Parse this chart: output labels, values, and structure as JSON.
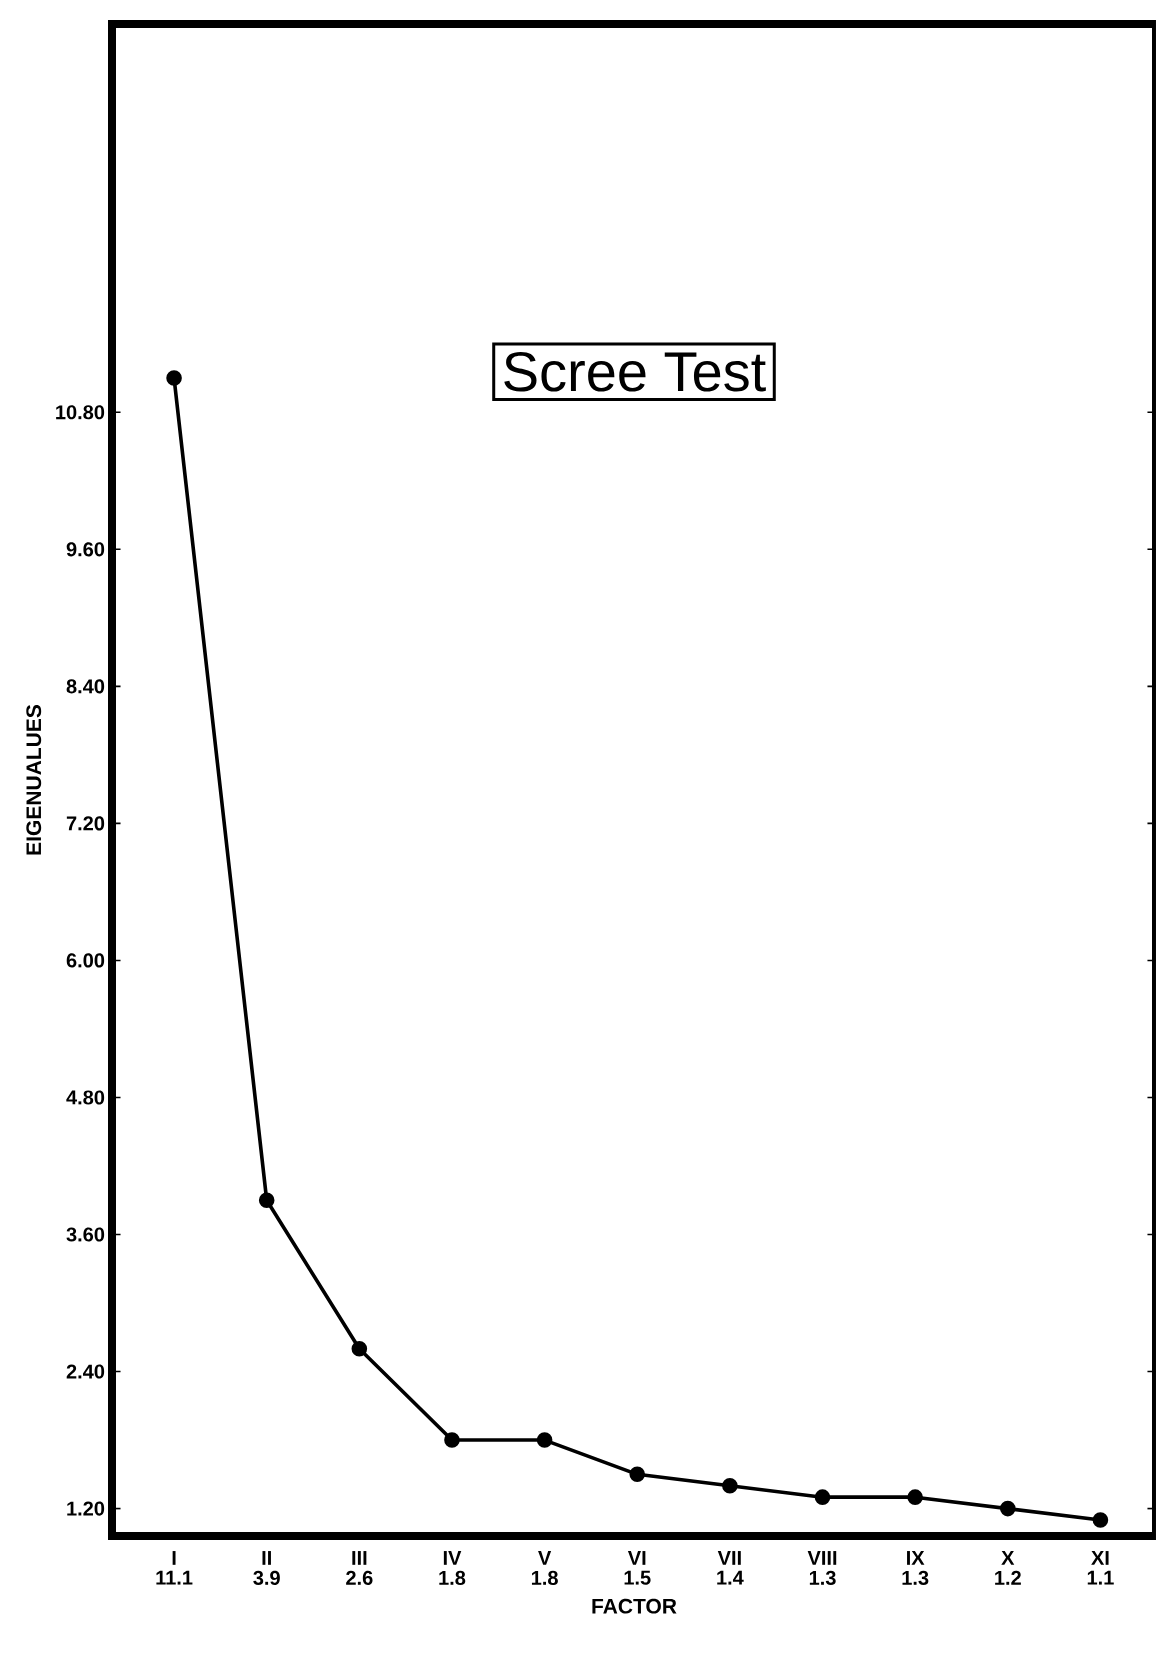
{
  "chart_data": {
    "type": "line",
    "title": "Scree Test",
    "xlabel": "FACTOR",
    "ylabel": "EIGENUALUES",
    "categories": [
      "I",
      "II",
      "III",
      "IV",
      "V",
      "VI",
      "VII",
      "VIII",
      "IX",
      "X",
      "XI"
    ],
    "values": [
      11.1,
      3.9,
      2.6,
      1.8,
      1.8,
      1.5,
      1.4,
      1.3,
      1.3,
      1.2,
      1.1
    ],
    "color": "#000000",
    "marker": "circle",
    "data_labels": true,
    "ylim": [
      0.96,
      14.2
    ],
    "yticks": [
      {
        "value": 1.2,
        "label": "1.20"
      },
      {
        "value": 2.4,
        "label": "2.40"
      },
      {
        "value": 3.6,
        "label": "3.60"
      },
      {
        "value": 4.8,
        "label": "4.80"
      },
      {
        "value": 6.0,
        "label": "6.00"
      },
      {
        "value": 7.2,
        "label": "7.20"
      },
      {
        "value": 8.4,
        "label": "8.40"
      },
      {
        "value": 9.6,
        "label": "9.60"
      },
      {
        "value": 10.8,
        "label": "10.80"
      }
    ]
  }
}
